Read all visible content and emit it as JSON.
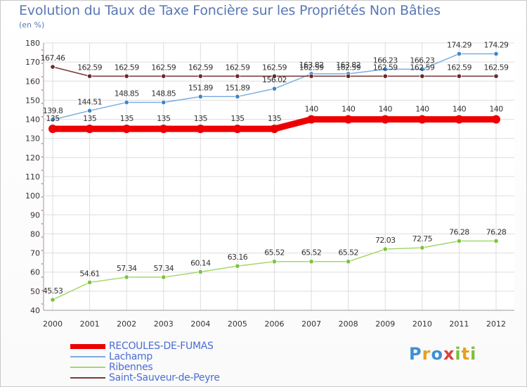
{
  "page": {
    "title": "Evolution du Taux de Taxe Foncière sur les Propriétés Non Bâties",
    "subtitle": "(en %)",
    "logo": "Proxiti"
  },
  "chart_data": {
    "type": "line",
    "title": "Evolution du Taux de Taxe Foncière sur les Propriétés Non Bâties",
    "ylabel": "(en %)",
    "xlabel": "",
    "ylim": [
      40,
      180
    ],
    "yticks": [
      40,
      50,
      60,
      70,
      80,
      90,
      100,
      110,
      120,
      130,
      140,
      150,
      160,
      170,
      180
    ],
    "grid": true,
    "legend": "bottom-left",
    "x": [
      2000,
      2001,
      2002,
      2003,
      2004,
      2005,
      2006,
      2007,
      2008,
      2009,
      2010,
      2011,
      2012
    ],
    "series": [
      {
        "name": "RECOULES-DE-FUMAS",
        "color": "#ee0000",
        "marker_color": "#ee0000",
        "values": [
          135,
          135,
          135,
          135,
          135,
          135,
          135,
          140,
          140,
          140,
          140,
          140,
          140
        ],
        "labels": [
          "135",
          "135",
          "135",
          "135",
          "135",
          "135",
          "135",
          "140",
          "140",
          "140",
          "140",
          "140",
          "140"
        ]
      },
      {
        "name": "Lachamp",
        "color": "#7aaee0",
        "marker_color": "#3f85c8",
        "values": [
          139.8,
          144.51,
          148.85,
          148.85,
          151.89,
          151.89,
          156.02,
          163.82,
          163.82,
          166.23,
          166.23,
          174.29,
          174.29
        ],
        "labels": [
          "139.8",
          "144.51",
          "148.85",
          "148.85",
          "151.89",
          "151.89",
          "156.02",
          "163.82",
          "163.82",
          "166.23",
          "166.23",
          "174.29",
          "174.29"
        ]
      },
      {
        "name": "Ribennes",
        "color": "#a3d86b",
        "marker_color": "#7cc43d",
        "values": [
          45.53,
          54.61,
          57.34,
          57.34,
          60.14,
          63.16,
          65.52,
          65.52,
          65.52,
          72.03,
          72.75,
          76.28,
          76.28
        ],
        "labels": [
          "45.53",
          "54.61",
          "57.34",
          "57.34",
          "60.14",
          "63.16",
          "65.52",
          "65.52",
          "65.52",
          "72.03",
          "72.75",
          "76.28",
          "76.28"
        ]
      },
      {
        "name": "Saint-Sauveur-de-Peyre",
        "color": "#7a3838",
        "marker_color": "#6b2a2a",
        "values": [
          167.46,
          162.59,
          162.59,
          162.59,
          162.59,
          162.59,
          162.59,
          162.59,
          162.59,
          162.59,
          162.59,
          162.59,
          162.59
        ],
        "labels": [
          "167.46",
          "162.59",
          "162.59",
          "162.59",
          "162.59",
          "162.59",
          "162.59",
          "162.59",
          "162.59",
          "162.59",
          "162.59",
          "162.59",
          "162.59"
        ]
      }
    ]
  }
}
